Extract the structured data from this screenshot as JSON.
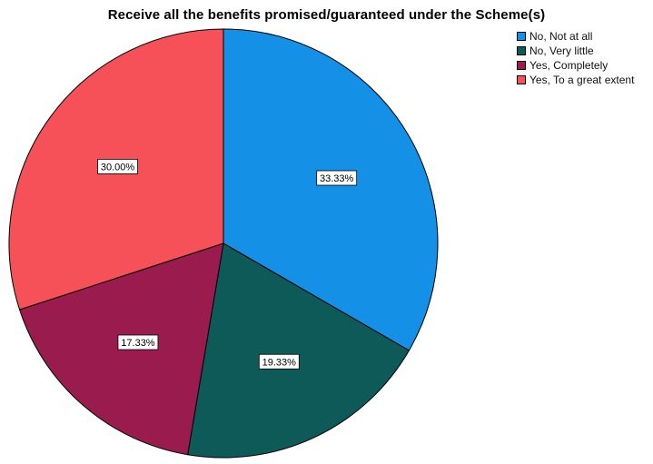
{
  "chart_data": {
    "type": "pie",
    "title": "Receive all the benefits promised/guaranteed under the Scheme(s)",
    "categories": [
      "No, Not at all",
      "No, Very little",
      "Yes, Completely",
      "Yes, To a great extent"
    ],
    "values": [
      33.33,
      19.33,
      17.33,
      30.0
    ],
    "data_labels": [
      "33.33%",
      "19.33%",
      "17.33%",
      "30.00%"
    ],
    "colors": [
      "#1590e7",
      "#0e5a58",
      "#9a1b4d",
      "#f65159"
    ],
    "legend": "top-right",
    "start_angle_deg": 0,
    "direction": "clockwise"
  }
}
